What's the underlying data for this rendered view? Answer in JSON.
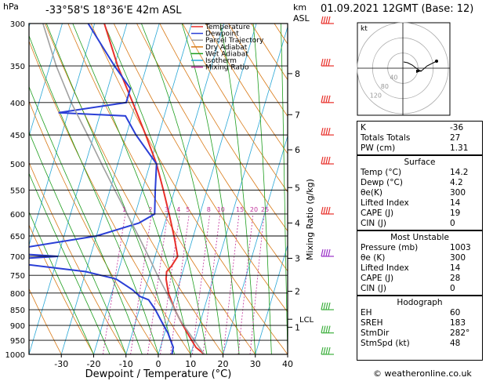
{
  "header": {
    "location": "-33°58'S  18°36'E  42m  ASL",
    "datetime": "01.09.2021  12GMT  (Base: 12)",
    "hpa_label": "hPa",
    "km_label": "km",
    "asl_label": "ASL",
    "mixing_axis_label": "Mixing Ratio (g/kg)",
    "x_axis_label": "Dewpoint / Temperature (°C)"
  },
  "legend": [
    {
      "label": "Temperature",
      "color": "#e8302a"
    },
    {
      "label": "Dewpoint",
      "color": "#2b3fd6"
    },
    {
      "label": "Parcel Trajectory",
      "color": "#a0a0a0"
    },
    {
      "label": "Dry Adiabat",
      "color": "#d97a17"
    },
    {
      "label": "Wet Adiabat",
      "color": "#1e9e1e"
    },
    {
      "label": "Isotherm",
      "color": "#29a7d6"
    },
    {
      "label": "Mixing Ratio",
      "color": "#c0309a"
    }
  ],
  "chart_data": {
    "type": "line",
    "xlabel": "Dewpoint / Temperature (°C)",
    "ylabel": "hPa",
    "xlim": [
      -40,
      40
    ],
    "x_ticks": [
      -30,
      -20,
      -10,
      0,
      10,
      20,
      30,
      40
    ],
    "pressure_levels": [
      300,
      350,
      400,
      450,
      500,
      550,
      600,
      650,
      700,
      750,
      800,
      850,
      900,
      950,
      1000
    ],
    "km_ticks": [
      {
        "km": "1",
        "p": 906
      },
      {
        "km": "2",
        "p": 795
      },
      {
        "km": "3",
        "p": 705
      },
      {
        "km": "4",
        "p": 620
      },
      {
        "km": "5",
        "p": 545
      },
      {
        "km": "6",
        "p": 475
      },
      {
        "km": "7",
        "p": 418
      },
      {
        "km": "8",
        "p": 360
      }
    ],
    "lcl_label": "LCL",
    "lcl_p": 880,
    "mixing_ratio_labels": [
      "1",
      "2",
      "3",
      "4",
      "5",
      "8",
      "10",
      "15",
      "20",
      "25"
    ],
    "mixing_ratio_values": [
      1,
      2,
      3,
      4,
      5,
      8,
      10,
      15,
      20,
      25
    ],
    "series": [
      {
        "name": "Temperature",
        "color": "#e8302a",
        "p": [
          1000,
          975,
          950,
          925,
          900,
          875,
          850,
          800,
          760,
          740,
          725,
          700,
          650,
          600,
          550,
          500,
          450,
          400,
          350,
          300
        ],
        "t": [
          14.2,
          11.0,
          9.0,
          7.0,
          5.0,
          3.0,
          1.0,
          -2.5,
          -4.5,
          -5.0,
          -4.0,
          -3.0,
          -6.0,
          -9.5,
          -13.5,
          -18.0,
          -24.0,
          -31.0,
          -39.0,
          -47.0
        ]
      },
      {
        "name": "Dewpoint",
        "color": "#2b3fd6",
        "p": [
          1000,
          975,
          950,
          925,
          900,
          850,
          820,
          810,
          790,
          760,
          740,
          710,
          700,
          690,
          650,
          620,
          600,
          550,
          500,
          450,
          420,
          415,
          400,
          380,
          350,
          300
        ],
        "t": [
          4.2,
          4.0,
          2.5,
          1.0,
          -1.0,
          -5.0,
          -8.0,
          -11.0,
          -14.0,
          -20.0,
          -30.0,
          -60.0,
          -40.0,
          -60.0,
          -30.0,
          -18.0,
          -14.0,
          -16.0,
          -18.0,
          -27.0,
          -32.0,
          -53.0,
          -33.0,
          -33.0,
          -40.0,
          -52.0
        ]
      },
      {
        "name": "Parcel Trajectory",
        "color": "#a0a0a0",
        "p": [
          1000,
          950,
          900,
          880,
          850,
          800,
          750,
          700,
          650,
          600,
          550,
          500,
          450,
          400,
          350,
          300
        ],
        "t": [
          14.2,
          9.8,
          5.2,
          3.4,
          1.0,
          -3.0,
          -7.5,
          -12.0,
          -17.0,
          -22.5,
          -28.5,
          -35.0,
          -42.0,
          -50.0,
          -58.0,
          -66.0
        ]
      }
    ],
    "wind_barbs": [
      {
        "p": 300,
        "color": "#e8302a"
      },
      {
        "p": 350,
        "color": "#e8302a"
      },
      {
        "p": 400,
        "color": "#e8302a"
      },
      {
        "p": 450,
        "color": "#e8302a"
      },
      {
        "p": 500,
        "color": "#e8302a"
      },
      {
        "p": 600,
        "color": "#e8302a"
      },
      {
        "p": 700,
        "color": "#9a30c8"
      },
      {
        "p": 850,
        "color": "#3fb03f"
      },
      {
        "p": 925,
        "color": "#3fb03f"
      },
      {
        "p": 1000,
        "color": "#3fb03f"
      }
    ],
    "hodograph": {
      "label": "kt",
      "ring_labels": [
        "40",
        "80",
        "120"
      ]
    }
  },
  "indices": {
    "rows": [
      {
        "k": "K",
        "v": "-36"
      },
      {
        "k": "Totals Totals",
        "v": "27"
      },
      {
        "k": "PW (cm)",
        "v": "1.31"
      }
    ]
  },
  "surface": {
    "title": "Surface",
    "rows": [
      {
        "k": "Temp (°C)",
        "v": "14.2"
      },
      {
        "k": "Dewp (°C)",
        "v": "4.2"
      },
      {
        "k": "θe(K)",
        "v": "300"
      },
      {
        "k": "Lifted Index",
        "v": "14"
      },
      {
        "k": "CAPE (J)",
        "v": "19"
      },
      {
        "k": "CIN (J)",
        "v": "0"
      }
    ]
  },
  "most_unstable": {
    "title": "Most Unstable",
    "rows": [
      {
        "k": "Pressure (mb)",
        "v": "1003"
      },
      {
        "k": "θe (K)",
        "v": "300"
      },
      {
        "k": "Lifted Index",
        "v": "14"
      },
      {
        "k": "CAPE (J)",
        "v": "28"
      },
      {
        "k": "CIN (J)",
        "v": "0"
      }
    ]
  },
  "hodograph_table": {
    "title": "Hodograph",
    "rows": [
      {
        "k": "EH",
        "v": "60"
      },
      {
        "k": "SREH",
        "v": "183"
      },
      {
        "k": "StmDir",
        "v": "282°"
      },
      {
        "k": "StmSpd (kt)",
        "v": "48"
      }
    ]
  },
  "credit": "© weatheronline.co.uk"
}
